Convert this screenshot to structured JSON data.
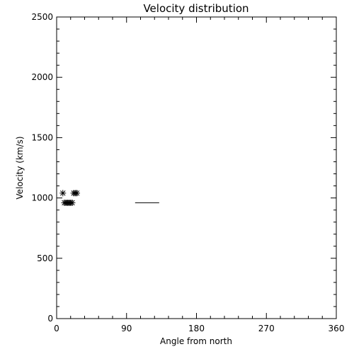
{
  "chart_data": {
    "type": "scatter",
    "title": "Velocity distribution",
    "xlabel": "Angle from north",
    "ylabel": "Velocity (km/s)",
    "xlim": [
      0,
      360
    ],
    "ylim": [
      0,
      2500
    ],
    "xticks": [
      0,
      90,
      180,
      270,
      360
    ],
    "yticks": [
      0,
      500,
      1000,
      1500,
      2000,
      2500
    ],
    "xtick_labels": [
      "0",
      "90",
      "180",
      "270",
      "360"
    ],
    "ytick_labels": [
      "0",
      "500",
      "1000",
      "1500",
      "2000",
      "2500"
    ],
    "grid": false,
    "series": [
      {
        "marker": "asterisk",
        "points": [
          {
            "x": 8,
            "y": 1040
          },
          {
            "x": 10,
            "y": 960
          },
          {
            "x": 12,
            "y": 960
          },
          {
            "x": 14,
            "y": 960
          },
          {
            "x": 16,
            "y": 960
          },
          {
            "x": 18,
            "y": 960
          },
          {
            "x": 20,
            "y": 960
          },
          {
            "x": 22,
            "y": 1040
          },
          {
            "x": 24,
            "y": 1040
          },
          {
            "x": 26,
            "y": 1040
          }
        ]
      }
    ],
    "segments": [
      {
        "x1": 101,
        "x2": 132,
        "y": 960
      }
    ]
  }
}
